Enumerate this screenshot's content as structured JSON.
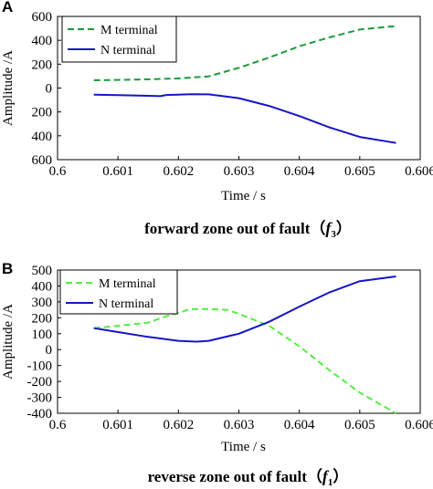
{
  "chart_data": [
    {
      "panel": "A",
      "type": "line",
      "caption": {
        "text": "forward zone out of fault",
        "open": "（",
        "symbol": "f",
        "subscript": "3",
        "close": "）"
      },
      "xlabel": "Time / s",
      "ylabel": "Amplitude /A",
      "xlim": [
        0.6,
        0.606
      ],
      "ylim": [
        -600,
        600
      ],
      "xticks": [
        "0.6",
        "0.601",
        "0.602",
        "0.603",
        "0.604",
        "0.605",
        "0.606"
      ],
      "yticks": [
        "600",
        "400",
        "200",
        "0",
        "200",
        "400",
        "600"
      ],
      "ytick_values": [
        600,
        400,
        200,
        0,
        -200,
        -400,
        -600
      ],
      "legend_position": "top-left",
      "series": [
        {
          "name": "M terminal",
          "style": "dashed",
          "color": "#1a9a3a",
          "x": [
            0.6006,
            0.601,
            0.6015,
            0.602,
            0.6025,
            0.603,
            0.6035,
            0.604,
            0.6045,
            0.605,
            0.6056
          ],
          "y": [
            65,
            68,
            73,
            80,
            98,
            170,
            255,
            350,
            425,
            490,
            520
          ]
        },
        {
          "name": "N terminal",
          "style": "solid",
          "color": "#1515c8",
          "x": [
            0.6006,
            0.601,
            0.6015,
            0.6017,
            0.6018,
            0.602,
            0.6022,
            0.6025,
            0.603,
            0.6035,
            0.604,
            0.6045,
            0.605,
            0.6056
          ],
          "y": [
            -55,
            -60,
            -65,
            -68,
            -58,
            -55,
            -52,
            -53,
            -85,
            -150,
            -235,
            -330,
            -410,
            -460
          ]
        }
      ]
    },
    {
      "panel": "B",
      "type": "line",
      "caption": {
        "text": "reverse zone out of fault",
        "open": "（",
        "symbol": "f",
        "subscript": "1",
        "close": "）"
      },
      "xlabel": "Time / s",
      "ylabel": "Amplitude /A",
      "xlim": [
        0.6,
        0.606
      ],
      "ylim": [
        -400,
        500
      ],
      "xticks": [
        "0.6",
        "0.601",
        "0.602",
        "0.603",
        "0.604",
        "0.605",
        "0.606"
      ],
      "yticks": [
        "500",
        "400",
        "300",
        "200",
        "100",
        "0",
        "-100",
        "-200",
        "-300",
        "-400"
      ],
      "ytick_values": [
        500,
        400,
        300,
        200,
        100,
        0,
        -100,
        -200,
        -300,
        -400
      ],
      "legend_position": "top-left",
      "series": [
        {
          "name": "M terminal",
          "style": "dashed",
          "color": "#55ee44",
          "x": [
            0.6006,
            0.601,
            0.6015,
            0.6018,
            0.602,
            0.6022,
            0.6025,
            0.6028,
            0.603,
            0.6035,
            0.604,
            0.6045,
            0.605,
            0.6056
          ],
          "y": [
            135,
            150,
            170,
            210,
            230,
            255,
            255,
            250,
            225,
            150,
            20,
            -130,
            -270,
            -400
          ]
        },
        {
          "name": "N terminal",
          "style": "solid",
          "color": "#1515c8",
          "x": [
            0.6006,
            0.601,
            0.6015,
            0.602,
            0.6023,
            0.6025,
            0.603,
            0.6035,
            0.604,
            0.6045,
            0.605,
            0.6056
          ],
          "y": [
            135,
            110,
            80,
            55,
            50,
            55,
            100,
            175,
            270,
            360,
            430,
            460
          ]
        }
      ]
    }
  ]
}
